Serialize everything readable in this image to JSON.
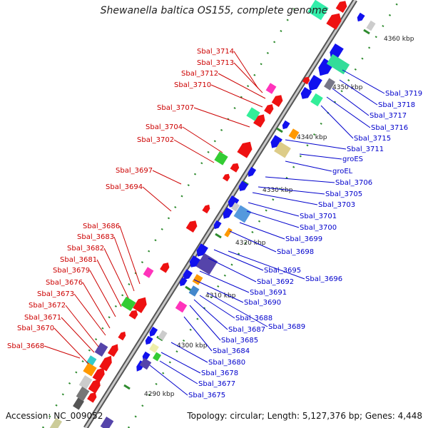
{
  "title": "Shewanella baltica OS155, complete genome",
  "footer": {
    "accession": "Accession: NC_009052",
    "topology": "Topology: circular; Length: 5,127,376 bp; Genes: 4,448"
  },
  "colors": {
    "forward_label": "#cc0000",
    "reverse_label": "#0000cc",
    "backbone": "#999999",
    "tick": "#2e8b2e"
  },
  "scale_ticks": [
    "4290 kbp",
    "4300 kbp",
    "4310 kbp",
    "4320 kbp",
    "4330 kbp",
    "4340 kbp",
    "4350 kbp",
    "4360 kbp"
  ],
  "forward_genes": [
    "Sbal_3714",
    "Sbal_3713",
    "Sbal_3712",
    "Sbal_3710",
    "Sbal_3707",
    "Sbal_3704",
    "Sbal_3702",
    "Sbal_3697",
    "Sbal_3694",
    "Sbal_3686",
    "Sbal_3683",
    "Sbal_3682",
    "Sbal_3681",
    "Sbal_3679",
    "Sbal_3676",
    "Sbal_3673",
    "Sbal_3672",
    "Sbal_3671",
    "Sbal_3670",
    "Sbal_3668"
  ],
  "reverse_genes": [
    "Sbal_3719",
    "Sbal_3718",
    "Sbal_3717",
    "Sbal_3716",
    "Sbal_3715",
    "Sbal_3711",
    "groES",
    "groEL",
    "Sbal_3706",
    "Sbal_3705",
    "Sbal_3703",
    "Sbal_3701",
    "Sbal_3700",
    "Sbal_3699",
    "Sbal_3698",
    "Sbal_3696",
    "Sbal_3695",
    "Sbal_3692",
    "Sbal_3691",
    "Sbal_3690",
    "Sbal_3689",
    "Sbal_3688",
    "Sbal_3687",
    "Sbal_3685",
    "Sbal_3684",
    "Sbal_3680",
    "Sbal_3678",
    "Sbal_3677",
    "Sbal_3675"
  ]
}
